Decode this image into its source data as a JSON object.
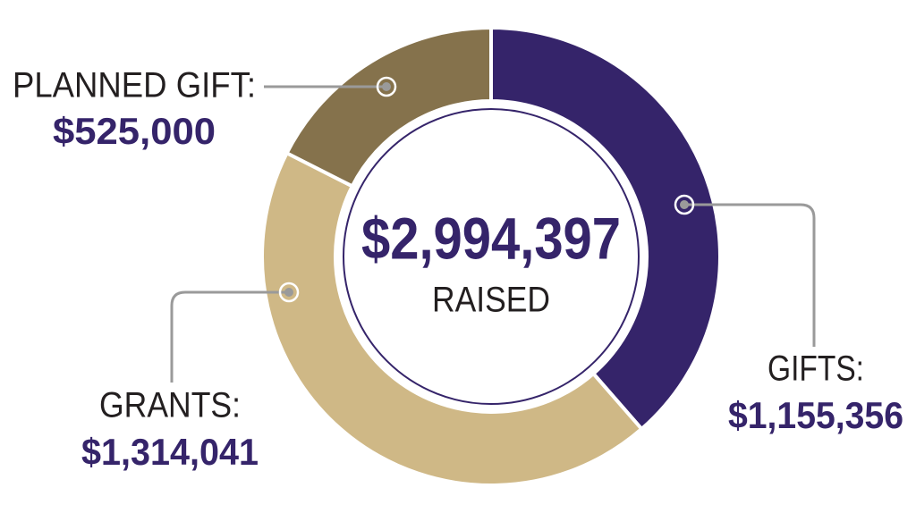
{
  "chart_data": {
    "type": "donut",
    "categories": [
      "GIFTS:",
      "GRANTS:",
      "PLANNED GIFT:"
    ],
    "values": [
      1155356,
      1314041,
      525000
    ],
    "value_labels": [
      "$1,155,356",
      "$1,314,041",
      "$525,000"
    ],
    "colors": [
      "#35246a",
      "#cfb886",
      "#85724c"
    ],
    "total": 2994397,
    "total_label": "$2,994,397",
    "center_text": "RAISED"
  }
}
